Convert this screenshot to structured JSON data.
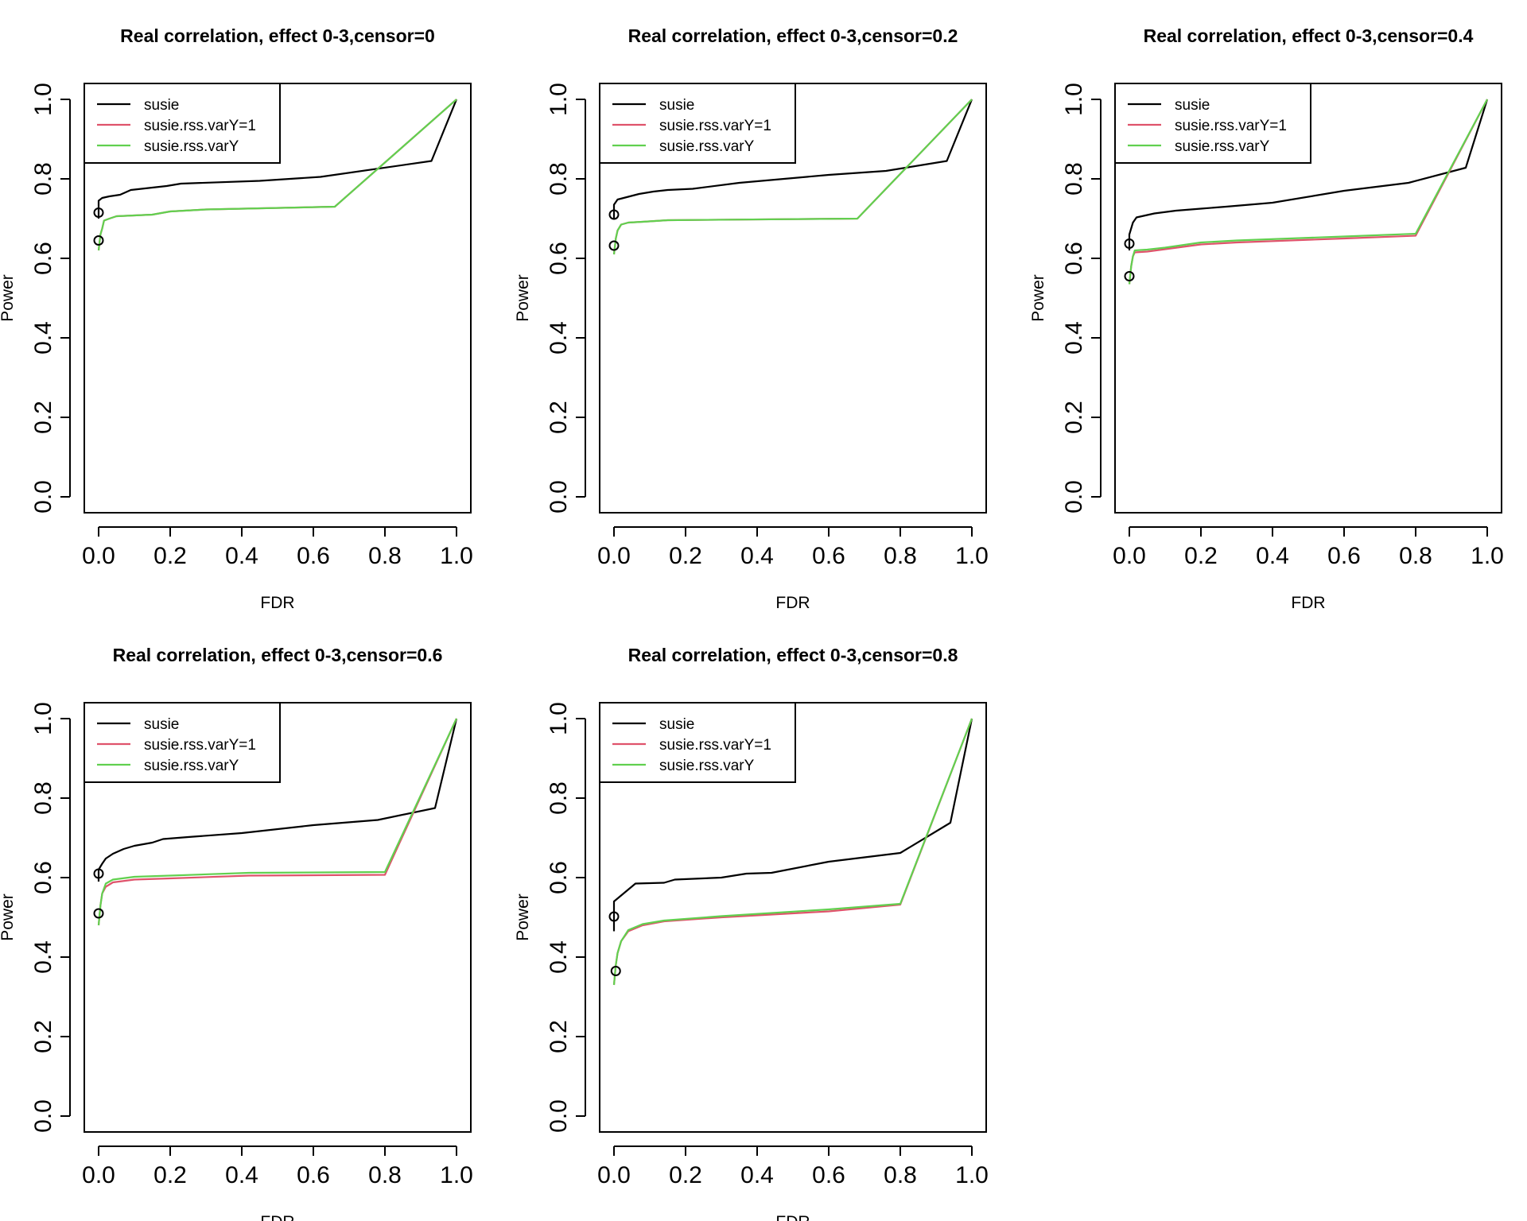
{
  "figure": {
    "panels": [
      {
        "title": "Real correlation, effect 0-3,censor=0",
        "xlabel": "FDR",
        "ylabel": "Power"
      },
      {
        "title": "Real correlation, effect 0-3,censor=0.2",
        "xlabel": "FDR",
        "ylabel": "Power"
      },
      {
        "title": "Real correlation, effect 0-3,censor=0.4",
        "xlabel": "FDR",
        "ylabel": "Power"
      },
      {
        "title": "Real correlation, effect 0-3,censor=0.6",
        "xlabel": "FDR",
        "ylabel": "Power"
      },
      {
        "title": "Real correlation, effect 0-3,censor=0.8",
        "xlabel": "FDR",
        "ylabel": "Power"
      }
    ]
  },
  "chart_data": [
    {
      "type": "line",
      "title": "Real correlation, effect 0-3,censor=0",
      "xlabel": "FDR",
      "ylabel": "Power",
      "xlim": [
        0,
        1
      ],
      "ylim": [
        0,
        1
      ],
      "xticks": [
        "0.0",
        "0.2",
        "0.4",
        "0.6",
        "0.8",
        "1.0"
      ],
      "yticks": [
        "0.0",
        "0.2",
        "0.4",
        "0.6",
        "0.8",
        "1.0"
      ],
      "grid": false,
      "legend_position": "top-left",
      "series": [
        {
          "name": "susie",
          "color": "#000000",
          "points": [
            [
              0.0,
              0.7
            ],
            [
              0.0,
              0.745
            ],
            [
              0.01,
              0.752
            ],
            [
              0.03,
              0.756
            ],
            [
              0.06,
              0.76
            ],
            [
              0.09,
              0.772
            ],
            [
              0.13,
              0.776
            ],
            [
              0.19,
              0.782
            ],
            [
              0.23,
              0.788
            ],
            [
              0.45,
              0.795
            ],
            [
              0.62,
              0.805
            ],
            [
              0.93,
              0.845
            ],
            [
              1.0,
              1.0
            ]
          ],
          "marker": [
            0.0,
            0.715
          ]
        },
        {
          "name": "susie.rss.varY=1",
          "color": "#DF536B",
          "points": [
            [
              0.0,
              0.62
            ],
            [
              0.005,
              0.66
            ],
            [
              0.01,
              0.675
            ],
            [
              0.015,
              0.695
            ],
            [
              0.03,
              0.7
            ],
            [
              0.05,
              0.706
            ],
            [
              0.15,
              0.71
            ],
            [
              0.2,
              0.718
            ],
            [
              0.3,
              0.723
            ],
            [
              0.66,
              0.73
            ],
            [
              1.0,
              1.0
            ]
          ],
          "marker": [
            0.0,
            0.645
          ]
        },
        {
          "name": "susie.rss.varY",
          "color": "#61D04F",
          "points": [
            [
              0.0,
              0.62
            ],
            [
              0.005,
              0.66
            ],
            [
              0.01,
              0.675
            ],
            [
              0.015,
              0.695
            ],
            [
              0.03,
              0.7
            ],
            [
              0.05,
              0.706
            ],
            [
              0.15,
              0.71
            ],
            [
              0.2,
              0.718
            ],
            [
              0.3,
              0.723
            ],
            [
              0.66,
              0.73
            ],
            [
              1.0,
              1.0
            ]
          ]
        }
      ]
    },
    {
      "type": "line",
      "title": "Real correlation, effect 0-3,censor=0.2",
      "xlabel": "FDR",
      "ylabel": "Power",
      "xlim": [
        0,
        1
      ],
      "ylim": [
        0,
        1
      ],
      "xticks": [
        "0.0",
        "0.2",
        "0.4",
        "0.6",
        "0.8",
        "1.0"
      ],
      "yticks": [
        "0.0",
        "0.2",
        "0.4",
        "0.6",
        "0.8",
        "1.0"
      ],
      "grid": false,
      "legend_position": "top-left",
      "series": [
        {
          "name": "susie",
          "color": "#000000",
          "points": [
            [
              0.0,
              0.7
            ],
            [
              0.0,
              0.735
            ],
            [
              0.01,
              0.748
            ],
            [
              0.04,
              0.755
            ],
            [
              0.07,
              0.762
            ],
            [
              0.11,
              0.768
            ],
            [
              0.15,
              0.772
            ],
            [
              0.22,
              0.775
            ],
            [
              0.35,
              0.79
            ],
            [
              0.6,
              0.81
            ],
            [
              0.76,
              0.82
            ],
            [
              0.93,
              0.845
            ],
            [
              1.0,
              1.0
            ]
          ],
          "marker": [
            0.0,
            0.71
          ]
        },
        {
          "name": "susie.rss.varY=1",
          "color": "#DF536B",
          "points": [
            [
              0.0,
              0.61
            ],
            [
              0.005,
              0.65
            ],
            [
              0.01,
              0.67
            ],
            [
              0.02,
              0.685
            ],
            [
              0.04,
              0.69
            ],
            [
              0.08,
              0.692
            ],
            [
              0.15,
              0.696
            ],
            [
              0.68,
              0.7
            ],
            [
              1.0,
              1.0
            ]
          ],
          "marker": [
            0.0,
            0.632
          ]
        },
        {
          "name": "susie.rss.varY",
          "color": "#61D04F",
          "points": [
            [
              0.0,
              0.61
            ],
            [
              0.005,
              0.65
            ],
            [
              0.01,
              0.67
            ],
            [
              0.02,
              0.685
            ],
            [
              0.04,
              0.69
            ],
            [
              0.08,
              0.692
            ],
            [
              0.15,
              0.696
            ],
            [
              0.68,
              0.7
            ],
            [
              1.0,
              1.0
            ]
          ]
        }
      ]
    },
    {
      "type": "line",
      "title": "Real correlation, effect 0-3,censor=0.4",
      "xlabel": "FDR",
      "ylabel": "Power",
      "xlim": [
        0,
        1
      ],
      "ylim": [
        0,
        1
      ],
      "xticks": [
        "0.0",
        "0.2",
        "0.4",
        "0.6",
        "0.8",
        "1.0"
      ],
      "yticks": [
        "0.0",
        "0.2",
        "0.4",
        "0.6",
        "0.8",
        "1.0"
      ],
      "grid": false,
      "legend_position": "top-left",
      "series": [
        {
          "name": "susie",
          "color": "#000000",
          "points": [
            [
              0.0,
              0.62
            ],
            [
              0.0,
              0.66
            ],
            [
              0.01,
              0.69
            ],
            [
              0.02,
              0.703
            ],
            [
              0.04,
              0.707
            ],
            [
              0.07,
              0.713
            ],
            [
              0.13,
              0.72
            ],
            [
              0.2,
              0.725
            ],
            [
              0.27,
              0.73
            ],
            [
              0.4,
              0.74
            ],
            [
              0.6,
              0.77
            ],
            [
              0.78,
              0.79
            ],
            [
              0.94,
              0.828
            ],
            [
              1.0,
              1.0
            ]
          ],
          "marker": [
            0.0,
            0.637
          ]
        },
        {
          "name": "susie.rss.varY=1",
          "color": "#DF536B",
          "points": [
            [
              0.0,
              0.535
            ],
            [
              0.005,
              0.58
            ],
            [
              0.01,
              0.605
            ],
            [
              0.015,
              0.615
            ],
            [
              0.05,
              0.617
            ],
            [
              0.1,
              0.623
            ],
            [
              0.2,
              0.635
            ],
            [
              0.3,
              0.64
            ],
            [
              0.6,
              0.65
            ],
            [
              0.8,
              0.657
            ],
            [
              1.0,
              1.0
            ]
          ],
          "marker": [
            0.0,
            0.555
          ]
        },
        {
          "name": "susie.rss.varY",
          "color": "#61D04F",
          "points": [
            [
              0.0,
              0.535
            ],
            [
              0.005,
              0.58
            ],
            [
              0.01,
              0.605
            ],
            [
              0.015,
              0.62
            ],
            [
              0.05,
              0.622
            ],
            [
              0.1,
              0.627
            ],
            [
              0.2,
              0.64
            ],
            [
              0.3,
              0.645
            ],
            [
              0.6,
              0.655
            ],
            [
              0.8,
              0.662
            ],
            [
              1.0,
              1.0
            ]
          ]
        }
      ]
    },
    {
      "type": "line",
      "title": "Real correlation, effect 0-3,censor=0.6",
      "xlabel": "FDR",
      "ylabel": "Power",
      "xlim": [
        0,
        1
      ],
      "ylim": [
        0,
        1
      ],
      "xticks": [
        "0.0",
        "0.2",
        "0.4",
        "0.6",
        "0.8",
        "1.0"
      ],
      "yticks": [
        "0.0",
        "0.2",
        "0.4",
        "0.6",
        "0.8",
        "1.0"
      ],
      "grid": false,
      "legend_position": "top-left",
      "series": [
        {
          "name": "susie",
          "color": "#000000",
          "points": [
            [
              0.0,
              0.59
            ],
            [
              0.0,
              0.62
            ],
            [
              0.01,
              0.635
            ],
            [
              0.02,
              0.648
            ],
            [
              0.04,
              0.66
            ],
            [
              0.07,
              0.672
            ],
            [
              0.1,
              0.68
            ],
            [
              0.15,
              0.688
            ],
            [
              0.18,
              0.697
            ],
            [
              0.25,
              0.702
            ],
            [
              0.4,
              0.712
            ],
            [
              0.6,
              0.732
            ],
            [
              0.78,
              0.745
            ],
            [
              0.94,
              0.775
            ],
            [
              1.0,
              1.0
            ]
          ],
          "marker": [
            0.0,
            0.61
          ]
        },
        {
          "name": "susie.rss.varY=1",
          "color": "#DF536B",
          "points": [
            [
              0.0,
              0.48
            ],
            [
              0.005,
              0.53
            ],
            [
              0.01,
              0.56
            ],
            [
              0.02,
              0.577
            ],
            [
              0.04,
              0.588
            ],
            [
              0.1,
              0.595
            ],
            [
              0.2,
              0.598
            ],
            [
              0.42,
              0.605
            ],
            [
              0.8,
              0.607
            ],
            [
              1.0,
              1.0
            ]
          ],
          "marker": [
            0.0,
            0.51
          ]
        },
        {
          "name": "susie.rss.varY",
          "color": "#61D04F",
          "points": [
            [
              0.0,
              0.48
            ],
            [
              0.005,
              0.53
            ],
            [
              0.01,
              0.56
            ],
            [
              0.02,
              0.585
            ],
            [
              0.04,
              0.595
            ],
            [
              0.1,
              0.602
            ],
            [
              0.2,
              0.605
            ],
            [
              0.42,
              0.612
            ],
            [
              0.8,
              0.614
            ],
            [
              1.0,
              1.0
            ]
          ]
        }
      ]
    },
    {
      "type": "line",
      "title": "Real correlation, effect 0-3,censor=0.8",
      "xlabel": "FDR",
      "ylabel": "Power",
      "xlim": [
        0,
        1
      ],
      "ylim": [
        0,
        1
      ],
      "xticks": [
        "0.0",
        "0.2",
        "0.4",
        "0.6",
        "0.8",
        "1.0"
      ],
      "yticks": [
        "0.0",
        "0.2",
        "0.4",
        "0.6",
        "0.8",
        "1.0"
      ],
      "grid": false,
      "legend_position": "top-left",
      "series": [
        {
          "name": "susie",
          "color": "#000000",
          "points": [
            [
              0.0,
              0.465
            ],
            [
              0.0,
              0.54
            ],
            [
              0.02,
              0.555
            ],
            [
              0.04,
              0.57
            ],
            [
              0.06,
              0.585
            ],
            [
              0.14,
              0.587
            ],
            [
              0.17,
              0.595
            ],
            [
              0.3,
              0.6
            ],
            [
              0.37,
              0.61
            ],
            [
              0.44,
              0.612
            ],
            [
              0.6,
              0.64
            ],
            [
              0.8,
              0.662
            ],
            [
              0.94,
              0.738
            ],
            [
              1.0,
              1.0
            ]
          ],
          "marker": [
            0.0,
            0.502
          ]
        },
        {
          "name": "susie.rss.varY=1",
          "color": "#DF536B",
          "points": [
            [
              0.0,
              0.33
            ],
            [
              0.005,
              0.38
            ],
            [
              0.01,
              0.41
            ],
            [
              0.02,
              0.44
            ],
            [
              0.04,
              0.465
            ],
            [
              0.08,
              0.48
            ],
            [
              0.14,
              0.49
            ],
            [
              0.3,
              0.5
            ],
            [
              0.6,
              0.515
            ],
            [
              0.8,
              0.532
            ],
            [
              1.0,
              1.0
            ]
          ],
          "marker": [
            0.005,
            0.365
          ]
        },
        {
          "name": "susie.rss.varY",
          "color": "#61D04F",
          "points": [
            [
              0.0,
              0.33
            ],
            [
              0.005,
              0.38
            ],
            [
              0.01,
              0.41
            ],
            [
              0.02,
              0.44
            ],
            [
              0.04,
              0.468
            ],
            [
              0.08,
              0.483
            ],
            [
              0.14,
              0.492
            ],
            [
              0.3,
              0.503
            ],
            [
              0.6,
              0.52
            ],
            [
              0.8,
              0.534
            ],
            [
              1.0,
              1.0
            ]
          ]
        }
      ]
    }
  ]
}
